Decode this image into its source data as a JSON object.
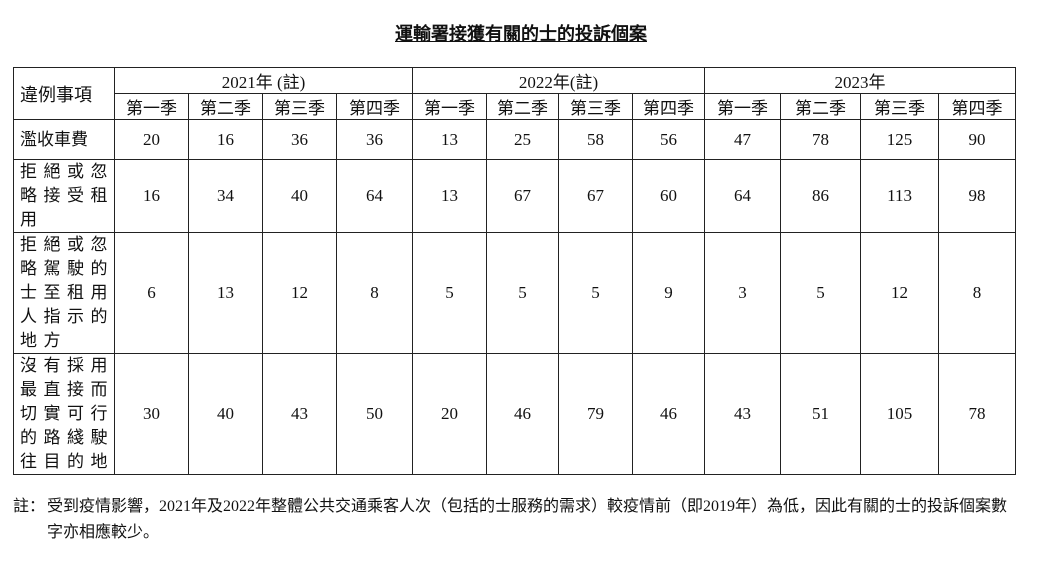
{
  "title": "運輸署接獲有關的士的投訴個案",
  "table": {
    "corner": "違例事項",
    "years": [
      "2021年 (註)",
      "2022年(註)",
      "2023年"
    ],
    "quarters": [
      "第一季",
      "第二季",
      "第三季",
      "第四季"
    ],
    "rows": [
      {
        "label": "濫收車費",
        "values": [
          20,
          16,
          36,
          36,
          13,
          25,
          58,
          56,
          47,
          78,
          125,
          90
        ]
      },
      {
        "label": "拒絕或忽略接受租用",
        "values": [
          16,
          34,
          40,
          64,
          13,
          67,
          67,
          60,
          64,
          86,
          113,
          98
        ]
      },
      {
        "label": "拒絕或忽略駕駛的士至租用人指示的地方",
        "values": [
          6,
          13,
          12,
          8,
          5,
          5,
          5,
          9,
          3,
          5,
          12,
          8
        ]
      },
      {
        "label": "沒有採用最直接而切實可行的路綫駛往目的地",
        "values": [
          30,
          40,
          43,
          50,
          20,
          46,
          79,
          46,
          43,
          51,
          105,
          78
        ]
      }
    ]
  },
  "note": {
    "lead": "註：",
    "text": "受到疫情影響，2021年及2022年整體公共交通乘客人次（包括的士服務的需求）較疫情前（即2019年）為低，因此有關的士的投訴個案數字亦相應較少。"
  }
}
